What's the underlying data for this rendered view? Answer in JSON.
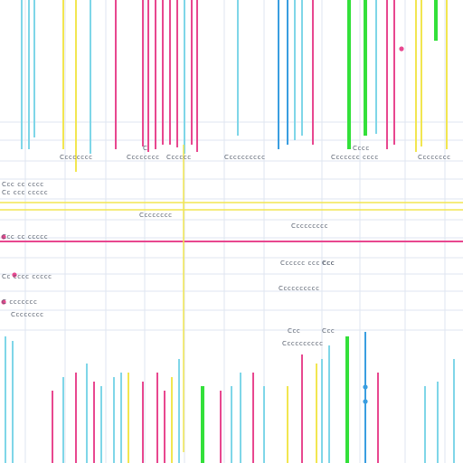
{
  "colors": {
    "pink": "#e8478f",
    "cyan": "#7fd6e8",
    "yellow": "#f2e650",
    "green": "#33e03a",
    "blue": "#3a9ee0",
    "grid": "#dfe6f0",
    "label": "#5a6270"
  },
  "chart_data": {
    "type": "bar",
    "title": "",
    "xlabel": "",
    "ylabel": "",
    "grid": true,
    "top_lines": [
      {
        "color": "cyan",
        "value": 165
      },
      {
        "color": "cyan",
        "value": 165
      },
      {
        "color": "cyan",
        "value": 152
      },
      {
        "color": "yellow",
        "value": 165
      },
      {
        "color": "yellow",
        "value": 190
      },
      {
        "color": "cyan",
        "value": 170
      },
      {
        "color": "pink",
        "value": 165
      },
      {
        "color": "pink",
        "value": 162
      },
      {
        "color": "pink",
        "value": 168
      },
      {
        "color": "pink",
        "value": 165
      },
      {
        "color": "pink",
        "value": 160
      },
      {
        "color": "pink",
        "value": 160
      },
      {
        "color": "pink",
        "value": 163
      },
      {
        "color": "cyan",
        "value": 170
      },
      {
        "color": "pink",
        "value": 160
      },
      {
        "color": "pink",
        "value": 168
      },
      {
        "color": "cyan",
        "value": 150
      },
      {
        "color": "blue",
        "value": 165
      },
      {
        "color": "blue",
        "value": 160
      },
      {
        "color": "cyan",
        "value": 155
      },
      {
        "color": "cyan",
        "value": 150
      },
      {
        "color": "pink",
        "value": 160
      },
      {
        "color": "green",
        "value": 165
      },
      {
        "color": "green",
        "value": 150
      },
      {
        "color": "cyan",
        "value": 148
      },
      {
        "color": "pink",
        "value": 165
      },
      {
        "color": "pink",
        "value": 160
      },
      {
        "color": "yellow",
        "value": 168
      },
      {
        "color": "yellow",
        "value": 162
      },
      {
        "color": "green",
        "value": 45
      },
      {
        "color": "yellow",
        "value": 165
      }
    ],
    "bottom_lines": [
      {
        "color": "cyan",
        "value": 140
      },
      {
        "color": "cyan",
        "value": 135
      },
      {
        "color": "pink",
        "value": 80
      },
      {
        "color": "cyan",
        "value": 95
      },
      {
        "color": "pink",
        "value": 100
      },
      {
        "color": "cyan",
        "value": 110
      },
      {
        "color": "pink",
        "value": 90
      },
      {
        "color": "cyan",
        "value": 85
      },
      {
        "color": "cyan",
        "value": 95
      },
      {
        "color": "cyan",
        "value": 100
      },
      {
        "color": "yellow",
        "value": 100
      },
      {
        "color": "pink",
        "value": 90
      },
      {
        "color": "pink",
        "value": 100
      },
      {
        "color": "pink",
        "value": 80
      },
      {
        "color": "yellow",
        "value": 95
      },
      {
        "color": "cyan",
        "value": 115
      },
      {
        "color": "green",
        "value": 85
      },
      {
        "color": "pink",
        "value": 80
      },
      {
        "color": "cyan",
        "value": 85
      },
      {
        "color": "cyan",
        "value": 100
      },
      {
        "color": "pink",
        "value": 100
      },
      {
        "color": "cyan",
        "value": 85
      },
      {
        "color": "yellow",
        "value": 85
      },
      {
        "color": "pink",
        "value": 120
      },
      {
        "color": "yellow",
        "value": 110
      },
      {
        "color": "cyan",
        "value": 115
      },
      {
        "color": "cyan",
        "value": 130
      },
      {
        "color": "green",
        "value": 140
      },
      {
        "color": "blue",
        "value": 145
      },
      {
        "color": "pink",
        "value": 100
      },
      {
        "color": "cyan",
        "value": 85
      },
      {
        "color": "cyan",
        "value": 90
      },
      {
        "color": "cyan",
        "value": 115
      }
    ],
    "horizontal_lines": [
      {
        "color": "yellow",
        "value": 4
      },
      {
        "color": "yellow",
        "value": 3
      },
      {
        "color": "pink",
        "value": 2
      }
    ],
    "vertical_ref_lines": [
      {
        "color": "yellow",
        "value": 0
      }
    ],
    "points": [
      {
        "color": "pink",
        "value": 0
      },
      {
        "color": "pink",
        "value": 1
      },
      {
        "color": "pink",
        "value": 2
      },
      {
        "color": "pink",
        "value": 3
      },
      {
        "color": "blue",
        "value": 4
      },
      {
        "color": "blue",
        "value": 5
      }
    ],
    "labels": [
      {
        "text": "Cccccccc"
      },
      {
        "text": "Cccccccc"
      },
      {
        "text": "Cccccc"
      },
      {
        "text": "Cccccccccc"
      },
      {
        "text": "Ccccccc cccc"
      },
      {
        "text": "Cccccccc"
      },
      {
        "text": "C"
      },
      {
        "text": "Cccc"
      },
      {
        "text": "Ccc cc cccc"
      },
      {
        "text": "Cc ccc ccccc"
      },
      {
        "text": "Cccccccc"
      },
      {
        "text": "Ccc cc ccccc"
      },
      {
        "text": "Ccccccccc"
      },
      {
        "text": "Cccccc ccc ccc"
      },
      {
        "text": "Ccc"
      },
      {
        "text": "Cc cccc ccccc"
      },
      {
        "text": "C ccccccc"
      },
      {
        "text": "Cccccccccc"
      },
      {
        "text": "Cccccccc"
      },
      {
        "text": "Ccc"
      },
      {
        "text": "Ccc"
      },
      {
        "text": "Cccccccccc"
      }
    ]
  }
}
